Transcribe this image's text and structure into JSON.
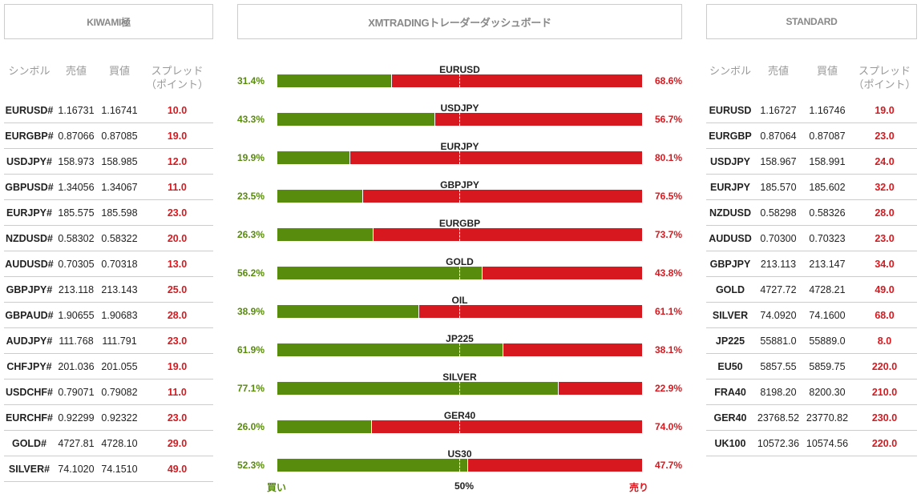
{
  "kiwami": {
    "title": "KIWAMI極",
    "headers": [
      "シンボル",
      "売値",
      "買値",
      "スプレッド（ポイント）"
    ],
    "rows": [
      [
        "EURUSD#",
        "1.16731",
        "1.16741",
        "10.0"
      ],
      [
        "EURGBP#",
        "0.87066",
        "0.87085",
        "19.0"
      ],
      [
        "USDJPY#",
        "158.973",
        "158.985",
        "12.0"
      ],
      [
        "GBPUSD#",
        "1.34056",
        "1.34067",
        "11.0"
      ],
      [
        "EURJPY#",
        "185.575",
        "185.598",
        "23.0"
      ],
      [
        "NZDUSD#",
        "0.58302",
        "0.58322",
        "20.0"
      ],
      [
        "AUDUSD#",
        "0.70305",
        "0.70318",
        "13.0"
      ],
      [
        "GBPJPY#",
        "213.118",
        "213.143",
        "25.0"
      ],
      [
        "GBPAUD#",
        "1.90655",
        "1.90683",
        "28.0"
      ],
      [
        "AUDJPY#",
        "111.768",
        "111.791",
        "23.0"
      ],
      [
        "CHFJPY#",
        "201.036",
        "201.055",
        "19.0"
      ],
      [
        "USDCHF#",
        "0.79071",
        "0.79082",
        "11.0"
      ],
      [
        "EURCHF#",
        "0.92299",
        "0.92322",
        "23.0"
      ],
      [
        "GOLD#",
        "4727.81",
        "4728.10",
        "29.0"
      ],
      [
        "SILVER#",
        "74.1020",
        "74.1510",
        "49.0"
      ]
    ]
  },
  "dashboard": {
    "title": "XMTRADINGトレーダーダッシュボード",
    "buy_label": "買い",
    "mid_label": "50%",
    "sell_label": "売り",
    "colors": {
      "buy": "#588c0c",
      "sell": "#d7191f"
    },
    "pairs": [
      {
        "name": "EURUSD",
        "buy": "31.4%",
        "sell": "68.6%",
        "buy_pct": 31.4
      },
      {
        "name": "USDJPY",
        "buy": "43.3%",
        "sell": "56.7%",
        "buy_pct": 43.3
      },
      {
        "name": "EURJPY",
        "buy": "19.9%",
        "sell": "80.1%",
        "buy_pct": 19.9
      },
      {
        "name": "GBPJPY",
        "buy": "23.5%",
        "sell": "76.5%",
        "buy_pct": 23.5
      },
      {
        "name": "EURGBP",
        "buy": "26.3%",
        "sell": "73.7%",
        "buy_pct": 26.3
      },
      {
        "name": "GOLD",
        "buy": "56.2%",
        "sell": "43.8%",
        "buy_pct": 56.2
      },
      {
        "name": "OIL",
        "buy": "38.9%",
        "sell": "61.1%",
        "buy_pct": 38.9
      },
      {
        "name": "JP225",
        "buy": "61.9%",
        "sell": "38.1%",
        "buy_pct": 61.9
      },
      {
        "name": "SILVER",
        "buy": "77.1%",
        "sell": "22.9%",
        "buy_pct": 77.1
      },
      {
        "name": "GER40",
        "buy": "26.0%",
        "sell": "74.0%",
        "buy_pct": 26.0
      },
      {
        "name": "US30",
        "buy": "52.3%",
        "sell": "47.7%",
        "buy_pct": 52.3
      }
    ]
  },
  "standard": {
    "title": "STANDARD",
    "headers": [
      "シンボル",
      "売値",
      "買値",
      "スプレッド（ポイント）"
    ],
    "rows": [
      [
        "EURUSD",
        "1.16727",
        "1.16746",
        "19.0"
      ],
      [
        "EURGBP",
        "0.87064",
        "0.87087",
        "23.0"
      ],
      [
        "USDJPY",
        "158.967",
        "158.991",
        "24.0"
      ],
      [
        "EURJPY",
        "185.570",
        "185.602",
        "32.0"
      ],
      [
        "NZDUSD",
        "0.58298",
        "0.58326",
        "28.0"
      ],
      [
        "AUDUSD",
        "0.70300",
        "0.70323",
        "23.0"
      ],
      [
        "GBPJPY",
        "213.113",
        "213.147",
        "34.0"
      ],
      [
        "GOLD",
        "4727.72",
        "4728.21",
        "49.0"
      ],
      [
        "SILVER",
        "74.0920",
        "74.1600",
        "68.0"
      ],
      [
        "JP225",
        "55881.0",
        "55889.0",
        "8.0"
      ],
      [
        "EU50",
        "5857.55",
        "5859.75",
        "220.0"
      ],
      [
        "FRA40",
        "8198.20",
        "8200.30",
        "210.0"
      ],
      [
        "GER40",
        "23768.52",
        "23770.82",
        "230.0"
      ],
      [
        "UK100",
        "10572.36",
        "10574.56",
        "220.0"
      ]
    ]
  }
}
